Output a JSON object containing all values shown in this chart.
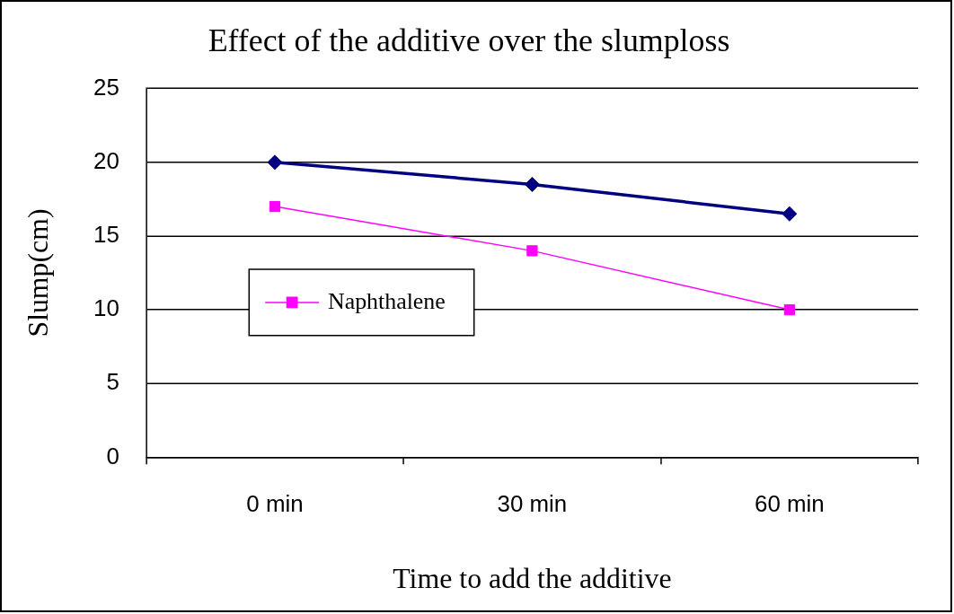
{
  "chart_data": {
    "type": "line",
    "title": "Effect of the additive over the slumploss",
    "xlabel": "Time to add the additive",
    "ylabel": "Slump(cm)",
    "categories": [
      "0 min",
      "30 min",
      "60 min"
    ],
    "series": [
      {
        "color": "#000080",
        "marker": "diamond",
        "values": [
          20,
          18.5,
          16.5
        ]
      },
      {
        "name": "Naphthalene",
        "color": "#ff00ff",
        "marker": "square",
        "values": [
          17,
          14,
          10
        ]
      }
    ],
    "ylim": [
      0,
      25
    ],
    "yticks": [
      0,
      5,
      10,
      15,
      20,
      25
    ],
    "grid": "y",
    "legend": "left"
  }
}
